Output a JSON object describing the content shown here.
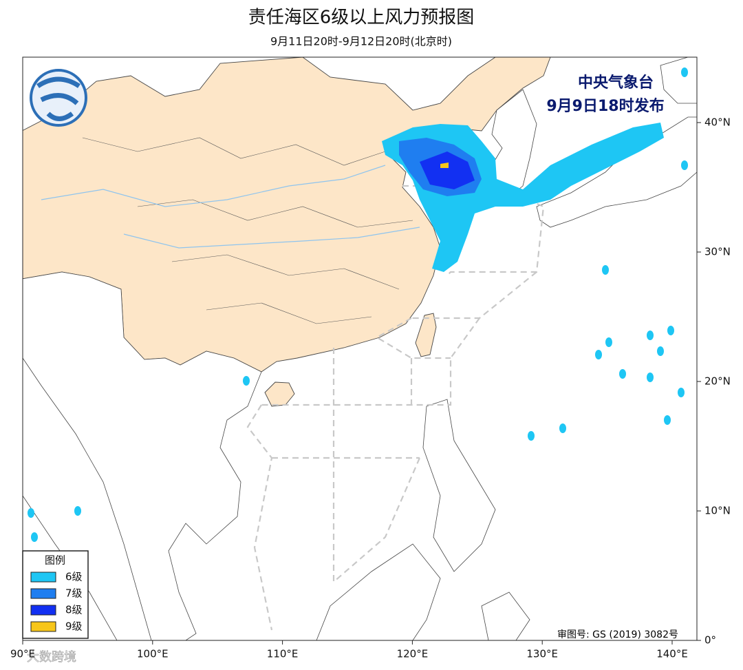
{
  "header": {
    "title": "责任海区6级以上风力预报图",
    "subtitle": "9月11日20时-9月12日20时(北京时)"
  },
  "map": {
    "agency": "中央气象台",
    "issued": "9月9日18时发布",
    "lon_ticks": [
      {
        "value": 90,
        "label": "90°E"
      },
      {
        "value": 100,
        "label": "100°E"
      },
      {
        "value": 110,
        "label": "110°E"
      },
      {
        "value": 120,
        "label": "120°E"
      },
      {
        "value": 130,
        "label": "130°E"
      },
      {
        "value": 140,
        "label": "140°E"
      }
    ],
    "lat_ticks": [
      {
        "value": 0,
        "label": "0°"
      },
      {
        "value": 10,
        "label": "10°N"
      },
      {
        "value": 20,
        "label": "20°N"
      },
      {
        "value": 30,
        "label": "30°N"
      },
      {
        "value": 40,
        "label": "40°N"
      }
    ],
    "review_number": "审图号: GS (2019) 3082号"
  },
  "legend": {
    "title": "图例",
    "items": [
      {
        "label": "6级",
        "color": "#1ec6f4"
      },
      {
        "label": "7级",
        "color": "#1f7ef0"
      },
      {
        "label": "8级",
        "color": "#1230f2"
      },
      {
        "label": "9级",
        "color": "#f7c61a"
      }
    ]
  },
  "watermark": "大数跨境"
}
